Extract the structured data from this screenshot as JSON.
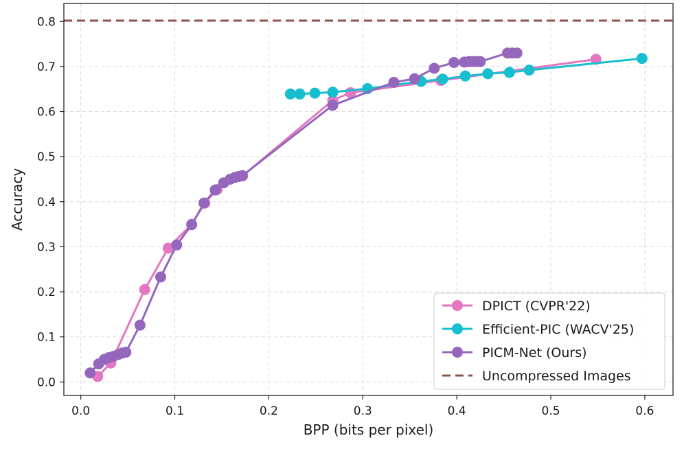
{
  "chart_data": {
    "type": "line",
    "title": "",
    "xlabel": "BPP (bits per pixel)",
    "ylabel": "Accuracy",
    "xlim": [
      -0.018,
      0.63
    ],
    "ylim": [
      -0.03,
      0.84
    ],
    "xticks": [
      0.0,
      0.1,
      0.2,
      0.3,
      0.4,
      0.5,
      0.6
    ],
    "xtick_labels": [
      "0.0",
      "0.1",
      "0.2",
      "0.3",
      "0.4",
      "0.5",
      "0.6"
    ],
    "yticks": [
      0.0,
      0.1,
      0.2,
      0.3,
      0.4,
      0.5,
      0.6,
      0.7,
      0.8
    ],
    "ytick_labels": [
      "0.0",
      "0.1",
      "0.2",
      "0.3",
      "0.4",
      "0.5",
      "0.6",
      "0.7",
      "0.8"
    ],
    "grid": true,
    "legend_position": "bottom-right",
    "series": [
      {
        "name": "DPICT (CVPR'22)",
        "color": "#e377c2",
        "x": [
          0.018,
          0.032,
          0.068,
          0.093,
          0.118,
          0.132,
          0.145,
          0.172,
          0.268,
          0.287,
          0.383,
          0.548
        ],
        "y": [
          0.012,
          0.042,
          0.205,
          0.297,
          0.35,
          0.397,
          0.427,
          0.457,
          0.625,
          0.642,
          0.669,
          0.716
        ]
      },
      {
        "name": "Efficient-PIC (WACV'25)",
        "color": "#17becf",
        "x": [
          0.223,
          0.233,
          0.249,
          0.268,
          0.305,
          0.362,
          0.385,
          0.409,
          0.433,
          0.456,
          0.477,
          0.597
        ],
        "y": [
          0.639,
          0.639,
          0.641,
          0.643,
          0.651,
          0.667,
          0.672,
          0.679,
          0.684,
          0.687,
          0.692,
          0.718
        ]
      },
      {
        "name": "PICM-Net (Ours)",
        "color": "#9467bd",
        "x": [
          0.01,
          0.019,
          0.025,
          0.03,
          0.035,
          0.04,
          0.044,
          0.048,
          0.063,
          0.085,
          0.102,
          0.118,
          0.131,
          0.143,
          0.152,
          0.159,
          0.164,
          0.168,
          0.172,
          0.268,
          0.333,
          0.355,
          0.376,
          0.397,
          0.408,
          0.413,
          0.417,
          0.421,
          0.425,
          0.454,
          0.459,
          0.464
        ],
        "y": [
          0.02,
          0.04,
          0.05,
          0.054,
          0.057,
          0.061,
          0.064,
          0.066,
          0.126,
          0.233,
          0.304,
          0.349,
          0.397,
          0.426,
          0.442,
          0.45,
          0.454,
          0.456,
          0.458,
          0.614,
          0.665,
          0.673,
          0.696,
          0.709,
          0.71,
          0.711,
          0.711,
          0.711,
          0.711,
          0.73,
          0.73,
          0.73
        ]
      },
      {
        "name": "Uncompressed Images",
        "color": "#8c564b",
        "style": "dashed",
        "y_constant": 0.802
      }
    ]
  }
}
